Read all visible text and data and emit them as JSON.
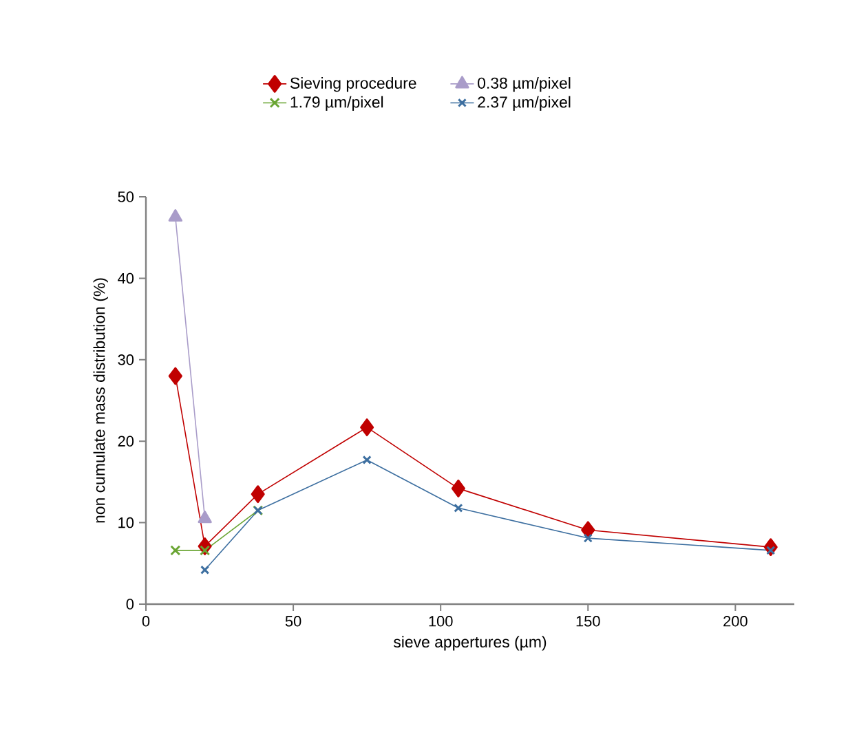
{
  "chart_data": {
    "type": "line",
    "xlabel": "sieve appertures (µm)",
    "ylabel": "non cumulate mass distribution (%)",
    "x": [
      10,
      20,
      38,
      75,
      106,
      150,
      212
    ],
    "series": [
      {
        "name": "Sieving procedure",
        "color": "#c00000",
        "marker": "diamond",
        "values": [
          28.0,
          7.1,
          13.5,
          21.7,
          14.2,
          9.1,
          7.0
        ]
      },
      {
        "name": "0.38 µm/pixel",
        "color": "#a99cc9",
        "marker": "triangle",
        "values": [
          47.5,
          10.5,
          null,
          null,
          null,
          null,
          null
        ]
      },
      {
        "name": "1.79 µm/pixel",
        "color": "#6aa533",
        "marker": "cross",
        "values": [
          6.6,
          6.6,
          11.5,
          null,
          null,
          null,
          null
        ]
      },
      {
        "name": "2.37 µm/pixel",
        "color": "#3d6fa0",
        "marker": "cross",
        "values": [
          null,
          4.2,
          11.5,
          17.7,
          11.8,
          8.1,
          6.6
        ]
      }
    ],
    "xlim": [
      0,
      220
    ],
    "xticks": [
      0,
      50,
      100,
      150,
      200
    ],
    "ylim": [
      0,
      50
    ],
    "yticks": [
      0,
      10,
      20,
      30,
      40,
      50
    ],
    "grid": false,
    "legend": "top",
    "line_style": "solid"
  }
}
